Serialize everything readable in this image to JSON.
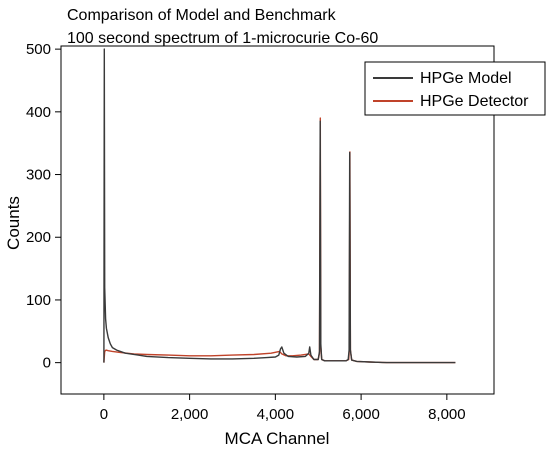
{
  "chart_data": {
    "type": "line",
    "title": "Comparison of Model and Benchmark",
    "subtitle": "100 second spectrum of 1-microcurie Co-60",
    "xlabel": "MCA Channel",
    "ylabel": "Counts",
    "xlim": [
      -1000,
      9100
    ],
    "ylim": [
      -50,
      505
    ],
    "xticks": [
      0,
      2000,
      4000,
      6000,
      8000
    ],
    "xtick_labels": [
      "0",
      "2,000",
      "4,000",
      "6,000",
      "8,000"
    ],
    "yticks": [
      0,
      100,
      200,
      300,
      400,
      500
    ],
    "ytick_labels": [
      "0",
      "100",
      "200",
      "300",
      "400",
      "500"
    ],
    "grid": false,
    "legend_position": "top-right",
    "series": [
      {
        "name": "HPGe Model",
        "color": "#3a3a3a",
        "x": [
          0,
          10,
          20,
          40,
          60,
          100,
          150,
          200,
          300,
          500,
          800,
          1000,
          1500,
          2000,
          2500,
          3000,
          3500,
          3800,
          4000,
          4080,
          4120,
          4150,
          4200,
          4300,
          4500,
          4700,
          4780,
          4800,
          4830,
          4900,
          5000,
          5030,
          5045,
          5060,
          5080,
          5150,
          5300,
          5500,
          5650,
          5700,
          5720,
          5735,
          5750,
          5780,
          5900,
          6200,
          6600,
          7000,
          7500,
          8000,
          8200
        ],
        "y": [
          0,
          500,
          120,
          70,
          55,
          40,
          30,
          24,
          20,
          15,
          12,
          10,
          8,
          7,
          6,
          6,
          7,
          8,
          9,
          12,
          22,
          25,
          15,
          10,
          9,
          10,
          15,
          25,
          12,
          5,
          5,
          18,
          385,
          30,
          5,
          3,
          3,
          3,
          3,
          5,
          20,
          335,
          20,
          4,
          2,
          1,
          0,
          0,
          0,
          0,
          0
        ]
      },
      {
        "name": "HPGe Detector",
        "color": "#c0432a",
        "x": [
          0,
          20,
          50,
          100,
          200,
          400,
          700,
          1000,
          1500,
          2000,
          2500,
          3000,
          3500,
          3900,
          4100,
          4150,
          4250,
          4400,
          4600,
          4780,
          4830,
          4900,
          5000,
          5030,
          5048,
          5060,
          5080,
          5150,
          5300,
          5500,
          5650,
          5710,
          5725,
          5738,
          5750,
          5780,
          5900,
          6200,
          6600,
          7000,
          7500,
          8000,
          8200
        ],
        "y": [
          0,
          18,
          20,
          19,
          18,
          16,
          14,
          13,
          12,
          11,
          11,
          12,
          13,
          15,
          18,
          14,
          11,
          11,
          12,
          14,
          10,
          5,
          5,
          15,
          390,
          25,
          5,
          3,
          3,
          3,
          3,
          5,
          20,
          336,
          20,
          4,
          2,
          1,
          0,
          0,
          0,
          0,
          0
        ]
      }
    ]
  }
}
